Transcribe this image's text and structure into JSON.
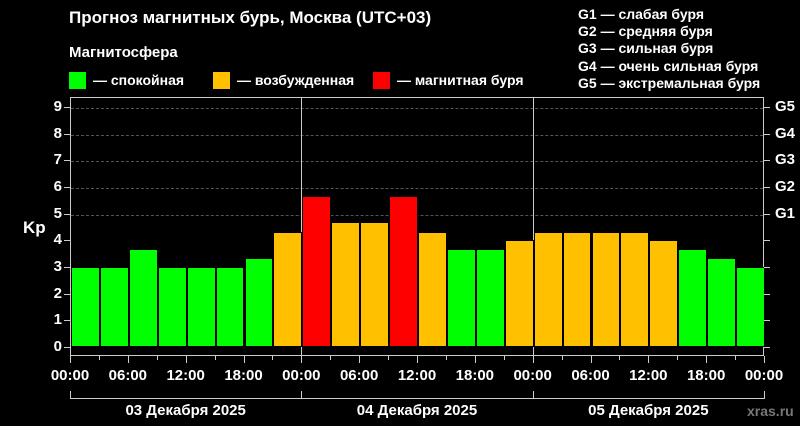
{
  "header": {
    "title": "Прогноз магнитных бурь, Москва (UTC+03)",
    "subtitle": "Магнитосфера"
  },
  "legend": [
    {
      "label": "— спокойная",
      "color": "#00ff00"
    },
    {
      "label": "— возбужденная",
      "color": "#ffc000"
    },
    {
      "label": "— магнитная буря",
      "color": "#ff0000"
    }
  ],
  "storm_levels": [
    "G1 — слабая буря",
    "G2 — средняя буря",
    "G3 — сильная буря",
    "G4 — очень сильная буря",
    "G5 — экстремальная буря"
  ],
  "axis": {
    "ylabel": "Kp",
    "yticks": [
      "0",
      "1",
      "2",
      "3",
      "4",
      "5",
      "6",
      "7",
      "8",
      "9"
    ],
    "gticks": [
      "G1",
      "G2",
      "G3",
      "G4",
      "G5"
    ],
    "xticks": [
      "00:00",
      "06:00",
      "12:00",
      "18:00",
      "00:00",
      "06:00",
      "12:00",
      "18:00",
      "00:00",
      "06:00",
      "12:00",
      "18:00",
      "00:00"
    ],
    "days": [
      "03 Декабря 2025",
      "04 Декабря 2025",
      "05 Декабря 2025"
    ]
  },
  "watermark": "xras.ru",
  "chart_data": {
    "type": "bar",
    "title": "Прогноз магнитных бурь, Москва (UTC+03)",
    "xlabel": "",
    "ylabel": "Kp",
    "ylim": [
      0,
      9
    ],
    "grid": true,
    "categories": [
      "03.12 00:00",
      "03.12 03:00",
      "03.12 06:00",
      "03.12 09:00",
      "03.12 12:00",
      "03.12 15:00",
      "03.12 18:00",
      "03.12 21:00",
      "04.12 00:00",
      "04.12 03:00",
      "04.12 06:00",
      "04.12 09:00",
      "04.12 12:00",
      "04.12 15:00",
      "04.12 18:00",
      "04.12 21:00",
      "05.12 00:00",
      "05.12 03:00",
      "05.12 06:00",
      "05.12 09:00",
      "05.12 12:00",
      "05.12 15:00",
      "05.12 18:00",
      "05.12 21:00"
    ],
    "values": [
      3.0,
      3.0,
      3.67,
      3.0,
      3.0,
      3.0,
      3.33,
      4.33,
      5.67,
      4.67,
      4.67,
      5.67,
      4.33,
      3.67,
      3.67,
      4.0,
      4.33,
      4.33,
      4.33,
      4.33,
      4.0,
      3.67,
      3.33,
      3.0
    ],
    "status": [
      "quiet",
      "quiet",
      "quiet",
      "quiet",
      "quiet",
      "quiet",
      "quiet",
      "active",
      "storm",
      "active",
      "active",
      "storm",
      "active",
      "quiet",
      "quiet",
      "active",
      "active",
      "active",
      "active",
      "active",
      "active",
      "quiet",
      "quiet",
      "quiet"
    ],
    "colors": {
      "quiet": "#00ff00",
      "active": "#ffc000",
      "storm": "#ff0000"
    },
    "secondary_axis": {
      "G1": 5,
      "G2": 6,
      "G3": 7,
      "G4": 8,
      "G5": 9
    }
  }
}
